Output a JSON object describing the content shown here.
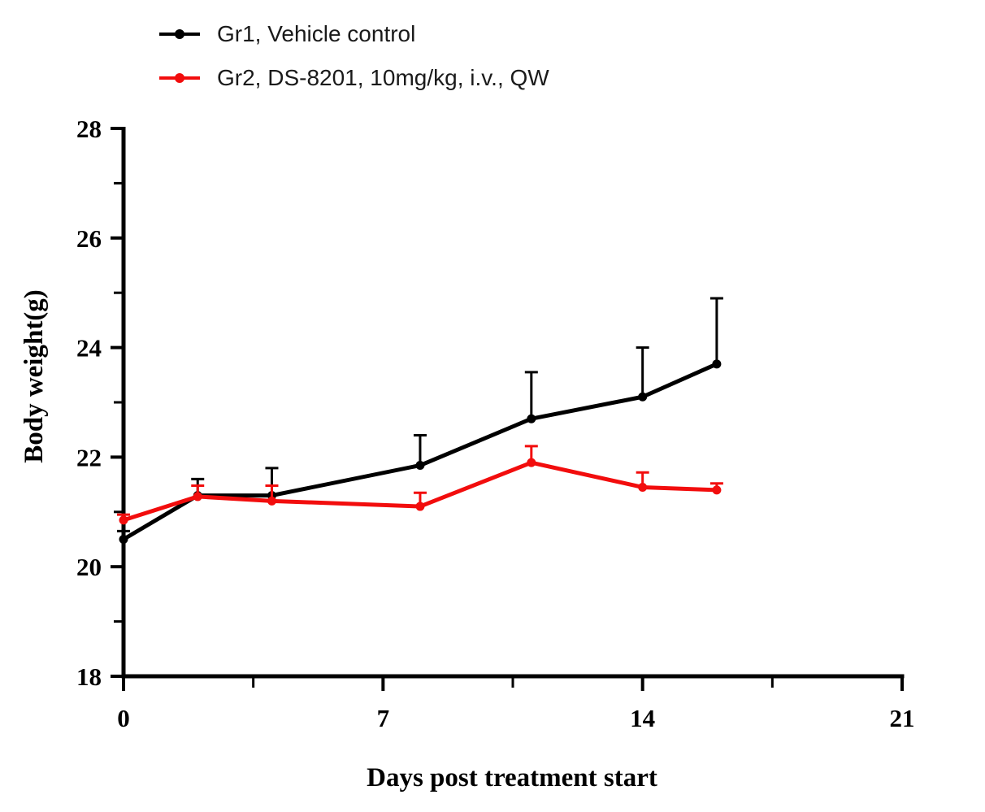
{
  "legend": {
    "items": [
      {
        "label": "Gr1, Vehicle control",
        "color": "#000000"
      },
      {
        "label": "Gr2, DS-8201, 10mg/kg, i.v., QW",
        "color": "#f20d0d"
      }
    ]
  },
  "chart_data": {
    "type": "line",
    "title": "",
    "xlabel": "Days post treatment start",
    "ylabel": "Body weight(g)",
    "xlim": [
      0,
      21
    ],
    "ylim": [
      18,
      28
    ],
    "x_ticks_major": [
      0,
      7,
      14,
      21
    ],
    "x_ticks_minor": [
      3.5,
      10.5,
      17.5
    ],
    "y_ticks_major": [
      18,
      20,
      22,
      24,
      26,
      28
    ],
    "y_ticks_minor": [
      19,
      21,
      23,
      25,
      27
    ],
    "grid": false,
    "legend_position": "top-left",
    "marker": "circle",
    "error_bars": "upper-only",
    "x": [
      0,
      2,
      4,
      8,
      11,
      14,
      16
    ],
    "series": [
      {
        "name": "Gr1, Vehicle control",
        "color": "#000000",
        "values": [
          20.5,
          21.3,
          21.3,
          21.85,
          22.7,
          23.1,
          23.7
        ],
        "err_up": [
          0.15,
          0.3,
          0.5,
          0.55,
          0.85,
          0.9,
          1.2
        ]
      },
      {
        "name": "Gr2, DS-8201, 10mg/kg, i.v., QW",
        "color": "#f20d0d",
        "values": [
          20.85,
          21.28,
          21.2,
          21.1,
          21.9,
          21.45,
          21.4
        ],
        "err_up": [
          0.1,
          0.2,
          0.28,
          0.25,
          0.3,
          0.27,
          0.12
        ]
      }
    ]
  }
}
